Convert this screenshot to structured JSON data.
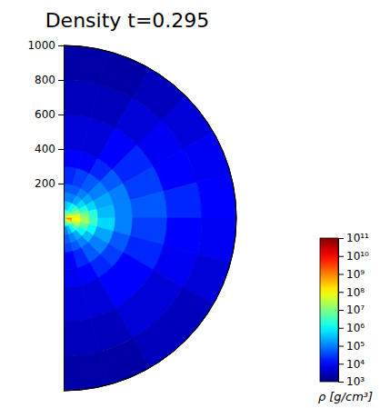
{
  "chart_data": {
    "type": "heatmap",
    "title": "Density t=0.295",
    "xlim": [
      0,
      1000
    ],
    "ylim": [
      -1000,
      1000
    ],
    "yticks": [
      200,
      400,
      600,
      800,
      1000
    ],
    "tick_labels": "y",
    "r_edges": [
      0,
      50,
      100,
      150,
      200,
      300,
      400,
      600,
      800,
      1000
    ],
    "theta_edges": [
      0,
      15,
      30,
      45,
      60,
      75,
      90,
      105,
      120,
      135,
      150,
      165,
      180
    ],
    "cells": [
      [
        2000000,
        3000000,
        5000000,
        10000000,
        30000000,
        100000000,
        1000000000,
        300000000,
        50000000,
        10000000,
        3000000,
        1000000
      ],
      [
        300000,
        500000,
        1000000,
        3000000,
        10000000,
        50000000,
        100000000,
        30000000,
        5000000,
        1000000,
        300000,
        100000
      ],
      [
        100000,
        100000,
        200000,
        500000,
        2000000,
        10000000,
        20000000,
        5000000,
        1000000,
        200000,
        100000,
        50000
      ],
      [
        50000,
        50000,
        100000,
        200000,
        500000,
        2000000,
        3000000,
        1000000,
        300000,
        100000,
        50000,
        30000
      ],
      [
        20000,
        30000,
        50000,
        100000,
        200000,
        300000,
        500000,
        200000,
        100000,
        50000,
        20000,
        10000
      ],
      [
        10000,
        10000,
        20000,
        50000,
        100000,
        100000,
        100000,
        50000,
        30000,
        20000,
        10000,
        8000
      ],
      [
        5000,
        5000,
        10000,
        20000,
        30000,
        50000,
        30000,
        20000,
        10000,
        10000,
        5000,
        5000
      ],
      [
        3000,
        3000,
        5000,
        8000,
        10000,
        20000,
        10000,
        8000,
        5000,
        5000,
        3000,
        3000
      ],
      [
        2000,
        2000,
        3000,
        5000,
        8000,
        10000,
        8000,
        5000,
        3000,
        3000,
        2000,
        2000
      ]
    ],
    "colorbar": {
      "label": "ρ [g/cm³]",
      "log": true,
      "range": [
        1000,
        100000000000
      ],
      "ticks": [
        {
          "value": 1000,
          "label": "10³"
        },
        {
          "value": 10000,
          "label": "10⁴"
        },
        {
          "value": 100000,
          "label": "10⁵"
        },
        {
          "value": 1000000,
          "label": "10⁶"
        },
        {
          "value": 10000000,
          "label": "10⁷"
        },
        {
          "value": 100000000,
          "label": "10⁸"
        },
        {
          "value": 1000000000,
          "label": "10⁹"
        },
        {
          "value": 10000000000,
          "label": "10¹⁰"
        },
        {
          "value": 100000000000,
          "label": "10¹¹"
        }
      ]
    }
  }
}
